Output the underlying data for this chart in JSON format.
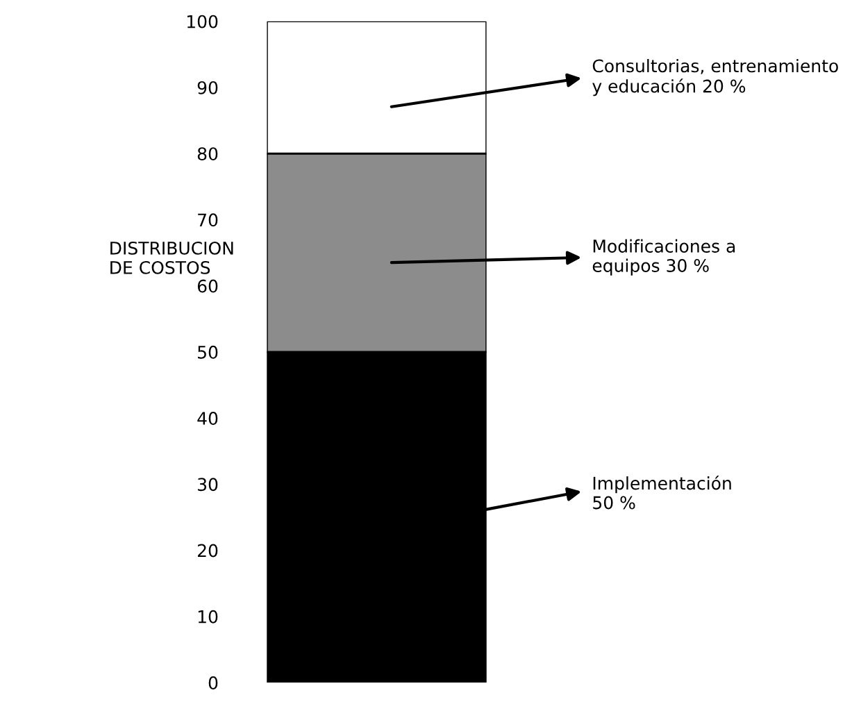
{
  "chart_data": {
    "type": "bar",
    "stacked": true,
    "categories": [
      null
    ],
    "ylabel": "DISTRIBUCION\nDE COSTOS",
    "series": [
      {
        "color": "#000000",
        "values": [
          50
        ]
      },
      {
        "color": "#8c8c8c",
        "values": [
          30
        ]
      },
      {
        "color": "#ffffff",
        "values": [
          20
        ]
      }
    ],
    "ylim": [
      0,
      100
    ],
    "yticks": [
      0,
      10,
      20,
      30,
      40,
      50,
      60,
      70,
      80,
      90,
      100
    ],
    "grid": false,
    "legend": false,
    "annotations": [
      "Consultorias, entrenamiento\ny educación 20 %",
      "Modificaciones a\nequipos 30 %",
      "Implementación\n50 %"
    ]
  }
}
